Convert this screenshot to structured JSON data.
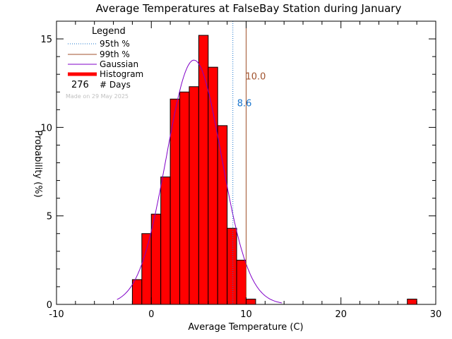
{
  "colors": {
    "histogram": "#ff0000",
    "gaussian": "#8000c8",
    "p95": "#1874cd",
    "p99": "#a0522d"
  },
  "chart_data": {
    "type": "bar",
    "title": "Average Temperatures at FalseBay Station during January",
    "xlabel": "Average Temperature (C)",
    "ylabel": "Probability (%)",
    "xlim": [
      -10,
      30
    ],
    "ylim": [
      0,
      16
    ],
    "xticks": [
      "-10",
      "0",
      "10",
      "20",
      "30"
    ],
    "yticks": [
      "0",
      "5",
      "10",
      "15"
    ],
    "bin_width": 1,
    "bins": [
      {
        "x": -2,
        "y": 1.4
      },
      {
        "x": -1,
        "y": 4.0
      },
      {
        "x": 0,
        "y": 5.1
      },
      {
        "x": 1,
        "y": 7.2
      },
      {
        "x": 2,
        "y": 11.6
      },
      {
        "x": 3,
        "y": 12.0
      },
      {
        "x": 4,
        "y": 12.3
      },
      {
        "x": 5,
        "y": 15.2
      },
      {
        "x": 6,
        "y": 13.4
      },
      {
        "x": 7,
        "y": 10.1
      },
      {
        "x": 8,
        "y": 4.3
      },
      {
        "x": 9,
        "y": 2.5
      },
      {
        "x": 10,
        "y": 0.3
      },
      {
        "x": 27,
        "y": 0.3
      }
    ],
    "gaussian": {
      "mean": 4.5,
      "sd": 2.9,
      "peak": 13.8
    },
    "percentile_95": {
      "value": 8.6,
      "label": "8.6"
    },
    "percentile_99": {
      "value": 10.0,
      "label": "10.0"
    },
    "legend": {
      "title": "Legend",
      "entries": [
        "95th %",
        "99th %",
        "Gaussian",
        "Histogram"
      ],
      "days_count": "276",
      "days_label": "# Days",
      "placement": "top-left"
    },
    "watermark": "Made on 29 May 2025"
  }
}
